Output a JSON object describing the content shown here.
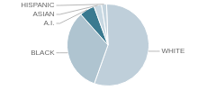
{
  "chart_data": {
    "type": "pie",
    "categories": [
      "WHITE",
      "BLACK",
      "A.I.",
      "ASIAN",
      "HISPANIC"
    ],
    "values": [
      56,
      33,
      6,
      3,
      2
    ],
    "colors": [
      "#bfcfda",
      "#afc4d0",
      "#3a7a90",
      "#c8d8e2",
      "#c4d4de"
    ]
  }
}
